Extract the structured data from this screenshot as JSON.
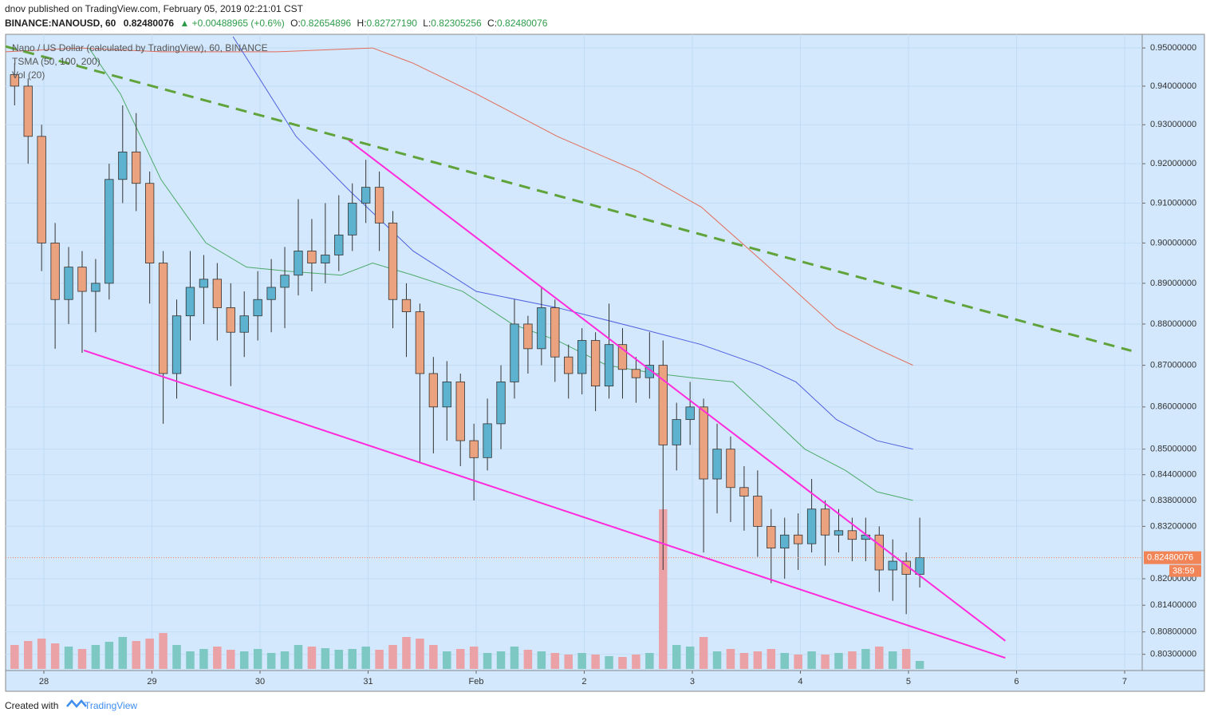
{
  "header": {
    "publisher": "dnov published on TradingView.com, February 05, 2019 02:21:01 CST",
    "symbol": "BINANCE:NANOUSD, 60",
    "last": "0.82480076",
    "change": "▲ +0.00488965 (+0.6%)",
    "ohlc": [
      {
        "label": "O:",
        "value": "0.82654896"
      },
      {
        "label": "H:",
        "value": "0.82727190"
      },
      {
        "label": "L:",
        "value": "0.82305256"
      },
      {
        "label": "C:",
        "value": "0.82480076"
      }
    ]
  },
  "footer": {
    "prefix": "Created with",
    "brand": "TradingView"
  },
  "chart_data": {
    "type": "candlestick",
    "log_scale": true,
    "grid": true,
    "legend": [
      "Nano / US Dollar (calculated by TradingView), 60, BINANCE",
      "TSMA (50, 100, 200)",
      "Vol (20)"
    ],
    "up_color": "#5db3cf",
    "down_color": "#eba27f",
    "vol_up_color": "#7ec8c4",
    "vol_down_color": "#eaa2a6",
    "xlim": [
      -8.5,
      243.9
    ],
    "xticks": [
      {
        "value": 0,
        "label": "28"
      },
      {
        "value": 24,
        "label": "29"
      },
      {
        "value": 48,
        "label": "30"
      },
      {
        "value": 72,
        "label": "31"
      },
      {
        "value": 96,
        "label": "Feb"
      },
      {
        "value": 120,
        "label": "2"
      },
      {
        "value": 144,
        "label": "3"
      },
      {
        "value": 168,
        "label": "4"
      },
      {
        "value": 192,
        "label": "5"
      },
      {
        "value": 216,
        "label": "6"
      },
      {
        "value": 240,
        "label": "7"
      }
    ],
    "ylim": [
      0.7994,
      0.9536
    ],
    "yticks": [
      {
        "value": 0.95,
        "label": "0.95000000"
      },
      {
        "value": 0.94,
        "label": "0.94000000"
      },
      {
        "value": 0.93,
        "label": "0.93000000"
      },
      {
        "value": 0.92,
        "label": "0.92000000"
      },
      {
        "value": 0.91,
        "label": "0.91000000"
      },
      {
        "value": 0.9,
        "label": "0.90000000"
      },
      {
        "value": 0.89,
        "label": "0.89000000"
      },
      {
        "value": 0.88,
        "label": "0.88000000"
      },
      {
        "value": 0.87,
        "label": "0.87000000"
      },
      {
        "value": 0.86,
        "label": "0.86000000"
      },
      {
        "value": 0.85,
        "label": "0.85000000"
      },
      {
        "value": 0.844,
        "label": "0.84400000"
      },
      {
        "value": 0.838,
        "label": "0.83800000"
      },
      {
        "value": 0.832,
        "label": "0.83200000"
      },
      {
        "value": 0.82,
        "label": "0.82000000"
      },
      {
        "value": 0.814,
        "label": "0.81400000"
      },
      {
        "value": 0.808,
        "label": "0.80800000"
      },
      {
        "value": 0.803,
        "label": "0.80300000"
      }
    ],
    "candles": {
      "x": [
        -8,
        -5,
        -2,
        1,
        4,
        7,
        10,
        13,
        16,
        19,
        22,
        25,
        28,
        31,
        34,
        37,
        40,
        43,
        46,
        49,
        52,
        55,
        58,
        61,
        64,
        67,
        70,
        73,
        76,
        79,
        82,
        85,
        88,
        91,
        94,
        97,
        100,
        103,
        106,
        109,
        112,
        115,
        118,
        121,
        124,
        127,
        130,
        133,
        136,
        139,
        142,
        145,
        148,
        151,
        154,
        157,
        160,
        163,
        166,
        169,
        172,
        175,
        178,
        181,
        184,
        187,
        190,
        193
      ],
      "open": [
        0.943,
        0.94,
        0.927,
        0.9,
        0.886,
        0.894,
        0.888,
        0.89,
        0.916,
        0.923,
        0.915,
        0.895,
        0.868,
        0.882,
        0.889,
        0.891,
        0.884,
        0.878,
        0.882,
        0.886,
        0.889,
        0.892,
        0.898,
        0.895,
        0.897,
        0.902,
        0.91,
        0.914,
        0.905,
        0.886,
        0.883,
        0.868,
        0.86,
        0.866,
        0.852,
        0.848,
        0.856,
        0.866,
        0.88,
        0.874,
        0.884,
        0.872,
        0.868,
        0.876,
        0.865,
        0.875,
        0.869,
        0.867,
        0.87,
        0.851,
        0.857,
        0.86,
        0.843,
        0.85,
        0.841,
        0.839,
        0.832,
        0.827,
        0.83,
        0.828,
        0.836,
        0.83,
        0.831,
        0.829,
        0.83,
        0.822,
        0.824,
        0.821
      ],
      "high": [
        0.946,
        0.942,
        0.93,
        0.905,
        0.899,
        0.898,
        0.896,
        0.92,
        0.935,
        0.933,
        0.918,
        0.898,
        0.886,
        0.898,
        0.897,
        0.895,
        0.89,
        0.888,
        0.893,
        0.896,
        0.899,
        0.911,
        0.906,
        0.91,
        0.912,
        0.915,
        0.921,
        0.918,
        0.908,
        0.89,
        0.885,
        0.872,
        0.871,
        0.868,
        0.856,
        0.862,
        0.87,
        0.886,
        0.882,
        0.889,
        0.886,
        0.875,
        0.879,
        0.878,
        0.885,
        0.879,
        0.872,
        0.878,
        0.876,
        0.861,
        0.866,
        0.862,
        0.856,
        0.853,
        0.846,
        0.845,
        0.836,
        0.834,
        0.835,
        0.843,
        0.838,
        0.836,
        0.834,
        0.834,
        0.832,
        0.829,
        0.826,
        0.834
      ],
      "low": [
        0.935,
        0.92,
        0.893,
        0.874,
        0.88,
        0.873,
        0.878,
        0.886,
        0.91,
        0.908,
        0.885,
        0.856,
        0.862,
        0.876,
        0.88,
        0.876,
        0.865,
        0.872,
        0.876,
        0.878,
        0.879,
        0.887,
        0.888,
        0.89,
        0.893,
        0.898,
        0.905,
        0.898,
        0.879,
        0.872,
        0.847,
        0.849,
        0.852,
        0.846,
        0.838,
        0.845,
        0.85,
        0.862,
        0.868,
        0.87,
        0.866,
        0.862,
        0.863,
        0.859,
        0.862,
        0.862,
        0.861,
        0.862,
        0.822,
        0.845,
        0.851,
        0.826,
        0.835,
        0.833,
        0.831,
        0.825,
        0.819,
        0.82,
        0.822,
        0.826,
        0.823,
        0.826,
        0.824,
        0.824,
        0.817,
        0.815,
        0.812,
        0.818
      ],
      "close": [
        0.94,
        0.927,
        0.9,
        0.886,
        0.894,
        0.888,
        0.89,
        0.916,
        0.923,
        0.915,
        0.895,
        0.868,
        0.882,
        0.889,
        0.891,
        0.884,
        0.878,
        0.882,
        0.886,
        0.889,
        0.892,
        0.898,
        0.895,
        0.897,
        0.902,
        0.91,
        0.914,
        0.905,
        0.886,
        0.883,
        0.868,
        0.86,
        0.866,
        0.852,
        0.848,
        0.856,
        0.866,
        0.88,
        0.874,
        0.884,
        0.872,
        0.868,
        0.876,
        0.865,
        0.875,
        0.869,
        0.867,
        0.87,
        0.851,
        0.857,
        0.86,
        0.843,
        0.85,
        0.841,
        0.839,
        0.832,
        0.827,
        0.83,
        0.828,
        0.836,
        0.83,
        0.831,
        0.829,
        0.83,
        0.822,
        0.824,
        0.821,
        0.8248
      ],
      "volume": [
        30,
        35,
        38,
        32,
        28,
        25,
        30,
        34,
        40,
        35,
        38,
        45,
        30,
        22,
        25,
        28,
        24,
        22,
        25,
        20,
        22,
        30,
        28,
        26,
        24,
        25,
        28,
        24,
        30,
        40,
        38,
        30,
        22,
        25,
        28,
        20,
        22,
        28,
        24,
        22,
        20,
        18,
        20,
        18,
        16,
        15,
        18,
        20,
        200,
        30,
        28,
        40,
        22,
        25,
        20,
        22,
        25,
        20,
        18,
        22,
        18,
        20,
        22,
        25,
        28,
        22,
        25,
        10
      ]
    },
    "overlays": [
      {
        "color": "#e36b5a",
        "x": [
          -8.5,
          8,
          26,
          52,
          73,
          82,
          96,
          114,
          132,
          146,
          159,
          167,
          176,
          185,
          193
        ],
        "values": [
          0.949,
          0.95,
          0.949,
          0.949,
          0.95,
          0.946,
          0.938,
          0.927,
          0.918,
          0.909,
          0.896,
          0.888,
          0.879,
          0.874,
          0.87
        ]
      },
      {
        "color": "#4f5fe0",
        "x": [
          42,
          56,
          68,
          82,
          96,
          114,
          132,
          146,
          159,
          167,
          176,
          185,
          193
        ],
        "values": [
          0.953,
          0.927,
          0.913,
          0.898,
          0.888,
          0.884,
          0.879,
          0.875,
          0.87,
          0.866,
          0.857,
          0.852,
          0.85
        ]
      },
      {
        "color": "#4caa6a",
        "x": [
          10,
          17,
          26,
          36,
          45,
          54,
          66,
          73,
          82,
          93,
          104,
          114,
          125,
          136,
          144,
          153,
          162,
          169,
          178,
          185,
          193
        ],
        "values": [
          0.95,
          0.938,
          0.916,
          0.9,
          0.894,
          0.893,
          0.892,
          0.895,
          0.892,
          0.888,
          0.88,
          0.876,
          0.87,
          0.868,
          0.867,
          0.866,
          0.857,
          0.85,
          0.845,
          0.84,
          0.838
        ]
      }
    ],
    "trend_lines": [
      {
        "color": "#ff2bdc",
        "dashed": false,
        "x": [
          67.7,
          213.5
        ],
        "values": [
          0.926,
          0.806
        ]
      },
      {
        "color": "#ff2bdc",
        "dashed": false,
        "x": [
          8.9,
          213.5
        ],
        "values": [
          0.8736,
          0.8022
        ]
      },
      {
        "color": "#5fa33a",
        "dashed": true,
        "x": [
          -8.5,
          241.5
        ],
        "values": [
          0.9504,
          0.8735
        ]
      }
    ],
    "price_tag": {
      "value": 0.8248,
      "label": "0.82480076",
      "countdown": "38:59",
      "color": "#f28557"
    }
  }
}
